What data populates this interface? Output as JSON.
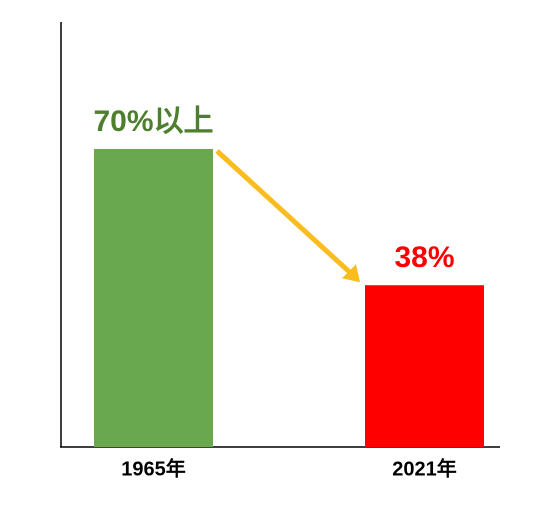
{
  "chart_data": {
    "type": "bar",
    "categories": [
      "1965年",
      "2021年"
    ],
    "values": [
      70,
      38
    ],
    "value_labels": [
      "70%以上",
      "38%"
    ],
    "colors": [
      "#6aa84f",
      "#ff0000"
    ],
    "label_colors": [
      "#4e7f2f",
      "#ff0000"
    ]
  }
}
